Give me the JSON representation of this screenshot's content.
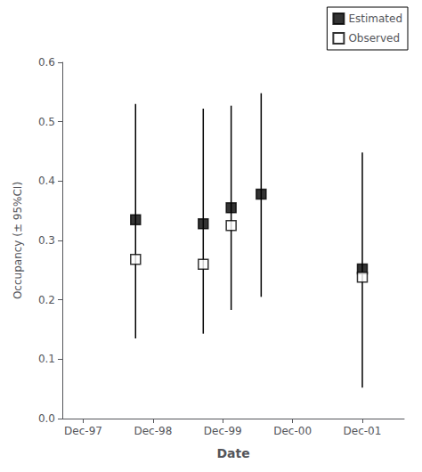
{
  "chart_data": {
    "type": "scatter",
    "xlabel": "Date",
    "ylabel": "Occupancy (± 95%CI)",
    "xlim": [
      -0.3,
      4.6
    ],
    "xticks": [
      {
        "value": 0,
        "label": "Dec-97"
      },
      {
        "value": 1,
        "label": "Dec-98"
      },
      {
        "value": 2,
        "label": "Dec-99"
      },
      {
        "value": 3,
        "label": "Dec-00"
      },
      {
        "value": 4,
        "label": "Dec-01"
      }
    ],
    "ylim": [
      0,
      0.6
    ],
    "yticks": [
      {
        "value": 0,
        "label": "0.0"
      },
      0.1,
      0.2,
      0.3,
      0.4,
      0.5,
      0.6
    ],
    "grid": false,
    "legend": "upper right",
    "series": [
      {
        "name": "Estimated",
        "color": "#000000",
        "marker": "square",
        "x": [
          0.75,
          1.72,
          2.12,
          2.55,
          4.0
        ],
        "values": [
          0.335,
          0.328,
          0.355,
          0.378,
          0.252
        ],
        "y_lo": [
          0.135,
          0.143,
          0.183,
          0.205,
          0.052
        ],
        "y_hi": [
          0.53,
          0.522,
          0.527,
          0.548,
          0.448
        ]
      },
      {
        "name": "Observed",
        "color": "#ffffff",
        "marker": "square",
        "x": [
          0.75,
          1.72,
          2.12,
          4.0
        ],
        "values": [
          0.268,
          0.26,
          0.325,
          0.238
        ]
      }
    ]
  }
}
